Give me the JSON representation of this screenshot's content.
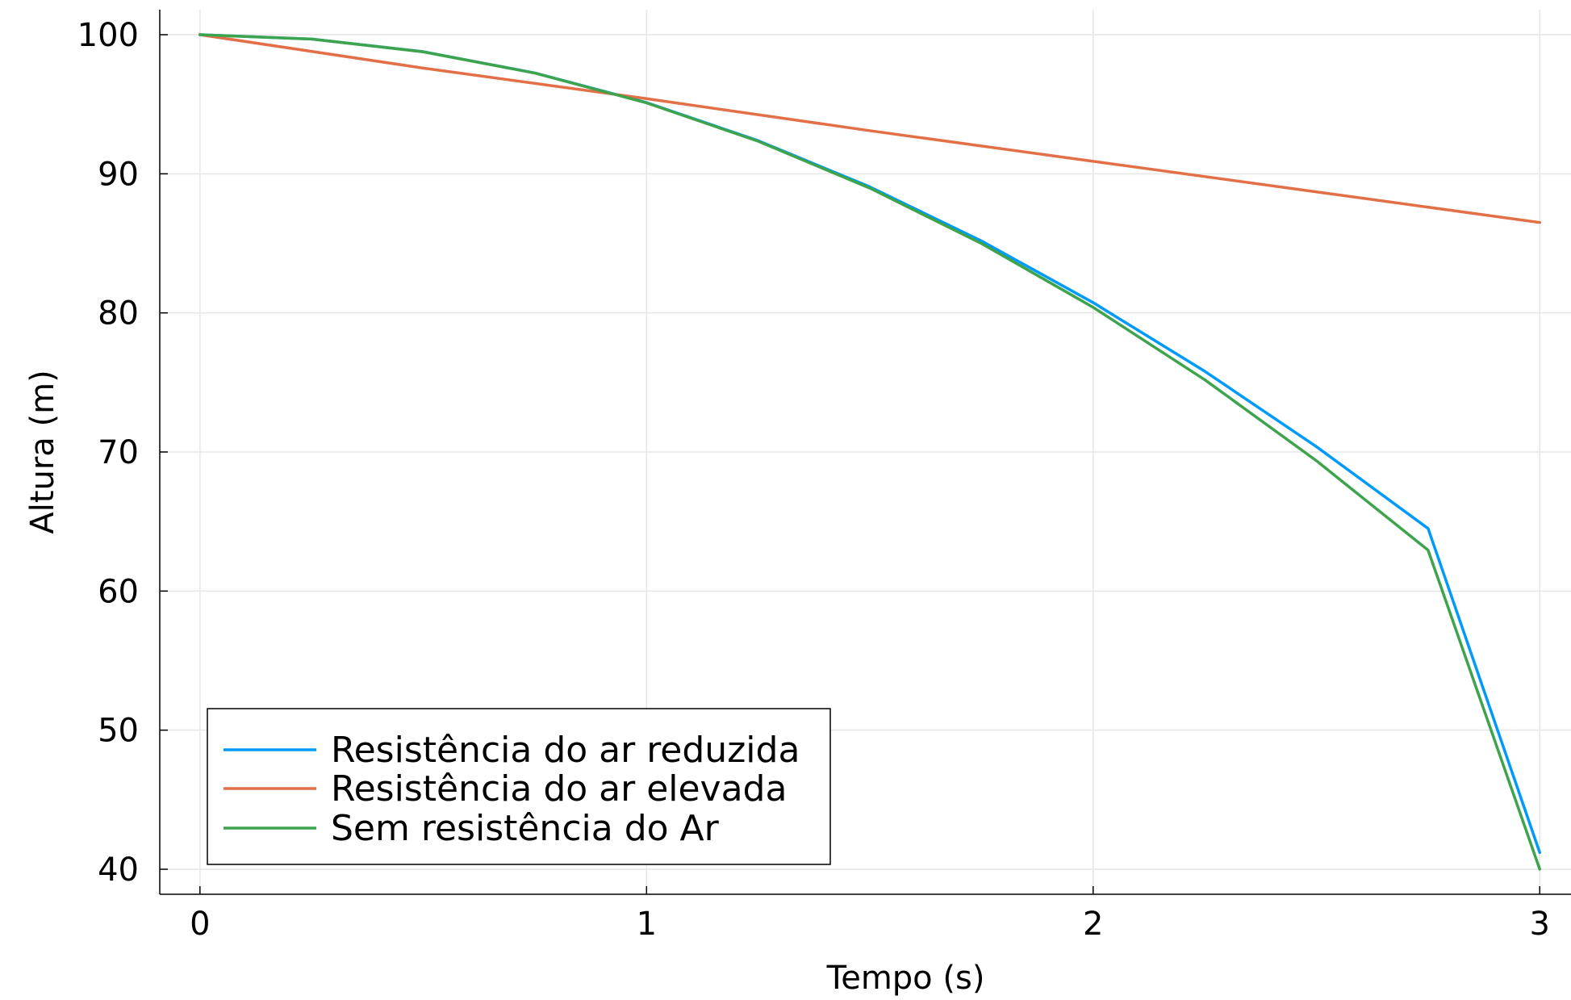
{
  "chart_data": {
    "type": "line",
    "title": "",
    "xlabel": "Tempo (s)",
    "ylabel": "Altura (m)",
    "xlim": [
      -0.09,
      3.07
    ],
    "ylim": [
      38.2,
      101.8
    ],
    "xticks": [
      0,
      1,
      2,
      3
    ],
    "yticks": [
      40,
      50,
      60,
      70,
      80,
      90,
      100
    ],
    "xtick_labels": [
      "0",
      "1",
      "2",
      "3"
    ],
    "ytick_labels": [
      "40",
      "50",
      "60",
      "70",
      "80",
      "90",
      "100"
    ],
    "grid": true,
    "legend_position": "bottom-left",
    "series": [
      {
        "name": "Resistência do ar reduzida",
        "color": "#009af9",
        "x": [
          0,
          0.25,
          0.5,
          0.75,
          1,
          1.25,
          1.5,
          1.75,
          2,
          2.25,
          2.5,
          2.75,
          3
        ],
        "y": [
          100,
          99.69,
          98.78,
          97.25,
          95.12,
          92.38,
          89.06,
          85.17,
          80.74,
          75.8,
          70.38,
          64.5,
          41.2
        ]
      },
      {
        "name": "Resistência do ar elevada",
        "color": "#e26f46",
        "x": [
          0,
          0.5,
          1,
          1.5,
          2,
          2.5,
          3
        ],
        "y": [
          100,
          97.6,
          95.4,
          93.1,
          90.9,
          88.7,
          86.5
        ]
      },
      {
        "name": "Sem resistência do Ar",
        "color": "#3da44d",
        "x": [
          0,
          0.25,
          0.5,
          0.75,
          1,
          1.25,
          1.5,
          1.75,
          2,
          2.25,
          2.5,
          2.75,
          3
        ],
        "y": [
          100,
          99.69,
          98.77,
          97.24,
          95.1,
          92.34,
          88.97,
          84.99,
          80.4,
          75.19,
          69.37,
          62.94,
          40.0
        ]
      }
    ]
  }
}
